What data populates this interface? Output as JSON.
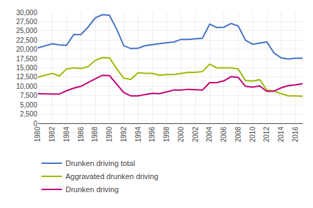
{
  "chart_data": {
    "type": "line",
    "x": [
      1980,
      1981,
      1982,
      1983,
      1984,
      1985,
      1986,
      1987,
      1988,
      1989,
      1990,
      1991,
      1992,
      1993,
      1994,
      1995,
      1996,
      1997,
      1998,
      1999,
      2000,
      2001,
      2002,
      2003,
      2004,
      2005,
      2006,
      2007,
      2008,
      2009,
      2010,
      2011,
      2012,
      2013,
      2014,
      2015,
      2016,
      2017
    ],
    "series": [
      {
        "name": "Drunken driving total",
        "color": "#4472c4",
        "values": [
          20400,
          20900,
          21500,
          21200,
          21100,
          24000,
          24000,
          26000,
          28500,
          29400,
          29200,
          25500,
          21000,
          20200,
          20300,
          21000,
          21300,
          21500,
          21800,
          22000,
          22700,
          22700,
          22800,
          23000,
          26800,
          25900,
          26000,
          27000,
          26300,
          22500,
          21400,
          21700,
          22000,
          19000,
          17700,
          17400,
          17600,
          17600
        ]
      },
      {
        "name": "Aggravated drunken driving",
        "color": "#9aba00",
        "values": [
          12500,
          13000,
          13500,
          12800,
          14700,
          15000,
          14800,
          15300,
          17000,
          17800,
          17700,
          14800,
          12200,
          11900,
          13700,
          13500,
          13500,
          13000,
          13200,
          13200,
          13500,
          13800,
          13800,
          14000,
          16000,
          15000,
          15000,
          15000,
          14700,
          11600,
          11400,
          11800,
          9000,
          8700,
          8000,
          7400,
          7400,
          7300
        ]
      },
      {
        "name": "Drunken driving",
        "color": "#c00077",
        "values": [
          8000,
          7900,
          7900,
          7900,
          8800,
          9500,
          10000,
          11000,
          12000,
          13000,
          12900,
          10500,
          8300,
          7400,
          7400,
          7800,
          8100,
          8000,
          8500,
          9000,
          9000,
          9200,
          9100,
          9000,
          11000,
          11000,
          11500,
          12600,
          12400,
          10000,
          9800,
          10100,
          8600,
          8700,
          9600,
          10200,
          10400,
          10700
        ]
      }
    ],
    "xlim": [
      1980,
      2017
    ],
    "xticks": [
      1980,
      1982,
      1984,
      1986,
      1988,
      1990,
      1992,
      1994,
      1996,
      1998,
      2000,
      2002,
      2004,
      2006,
      2008,
      2010,
      2012,
      2014,
      2016
    ],
    "ylim": [
      0,
      30000
    ],
    "yticks": [
      0,
      {
        "value": 2500,
        "label": "2,500"
      },
      {
        "value": 5000,
        "label": "5,000"
      },
      {
        "value": 7500,
        "label": "7,500"
      },
      {
        "value": 10000,
        "label": "10,000"
      },
      {
        "value": 12500,
        "label": "12,500"
      },
      {
        "value": 15000,
        "label": "15,000"
      },
      {
        "value": 17500,
        "label": "17,500"
      },
      {
        "value": 20000,
        "label": "20,000"
      },
      {
        "value": 22500,
        "label": "22,500"
      },
      {
        "value": 25000,
        "label": "25,000"
      },
      {
        "value": 27500,
        "label": "27,500"
      },
      {
        "value": 30000,
        "label": "30,000"
      }
    ],
    "grid": true,
    "legend": "bottom"
  }
}
